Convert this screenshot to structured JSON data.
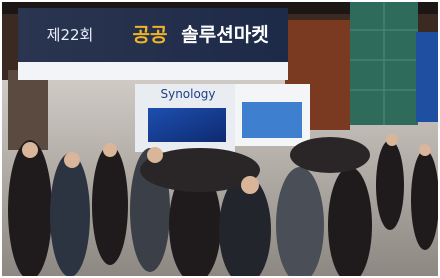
{
  "banner": {
    "edition": "제22회",
    "title_a": "공공",
    "title_b": "솔루션마켓"
  },
  "booth": {
    "brand": "Synology"
  }
}
